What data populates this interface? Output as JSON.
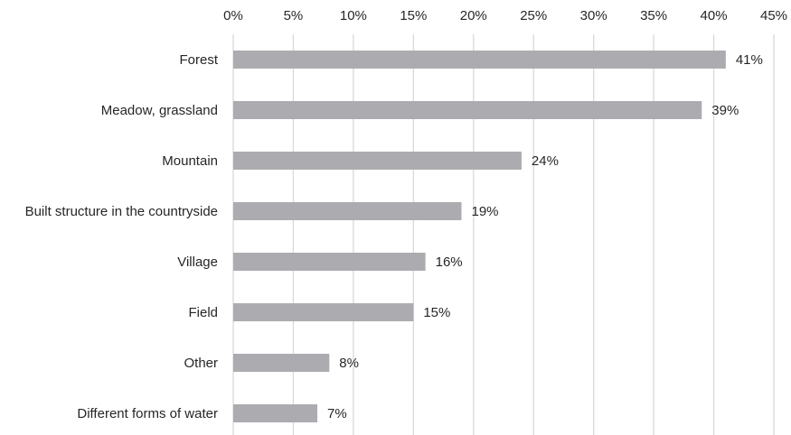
{
  "chart_data": {
    "type": "bar",
    "orientation": "horizontal",
    "categories": [
      "Forest",
      "Meadow, grassland",
      "Mountain",
      "Built structure in the countryside",
      "Village",
      "Field",
      "Other",
      "Different forms of water"
    ],
    "values": [
      41,
      39,
      24,
      19,
      16,
      15,
      8,
      7
    ],
    "data_labels": [
      "41%",
      "39%",
      "24%",
      "19%",
      "16%",
      "15%",
      "8%",
      "7%"
    ],
    "value_unit": "%",
    "xlim": [
      0,
      45
    ],
    "x_ticks": [
      0,
      5,
      10,
      15,
      20,
      25,
      30,
      35,
      40,
      45
    ],
    "x_tick_labels": [
      "0%",
      "5%",
      "10%",
      "15%",
      "20%",
      "25%",
      "30%",
      "35%",
      "40%",
      "45%"
    ],
    "x_axis_position": "top",
    "grid": true,
    "legend": false,
    "bar_color": "#acacb0",
    "grid_color": "#d9d9d9"
  }
}
